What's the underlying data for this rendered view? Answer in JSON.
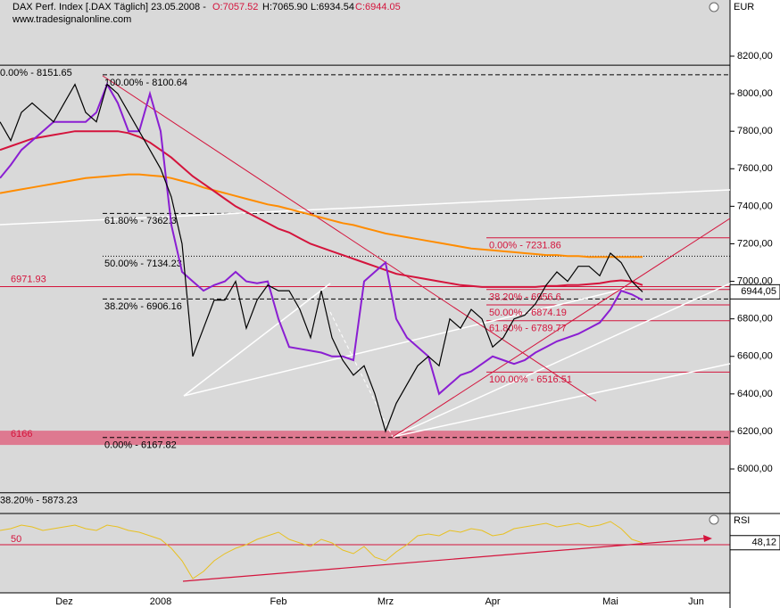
{
  "header": {
    "title": "DAX Perf. Index [.DAX  Täglich] 23.05.2008 -",
    "open": "O:7057.52",
    "high": "H:7065.90",
    "low": "L:6934.54",
    "close": "C:6944.05",
    "source": "www.tradesignalonline.com"
  },
  "chart_data": [
    {
      "type": "line",
      "unit": "EUR",
      "categories": [
        null,
        null,
        null,
        null,
        null,
        null,
        "Dez",
        null,
        null,
        null,
        null,
        null,
        null,
        null,
        null,
        "2008",
        null,
        null,
        null,
        null,
        null,
        null,
        null,
        null,
        null,
        null,
        "Feb",
        null,
        null,
        null,
        null,
        null,
        null,
        null,
        null,
        null,
        "Mrz",
        null,
        null,
        null,
        null,
        null,
        null,
        null,
        null,
        null,
        "Apr",
        null,
        null,
        null,
        null,
        null,
        null,
        null,
        null,
        null,
        null,
        "Mai",
        null,
        null,
        null,
        null,
        null,
        null,
        null,
        "Jun",
        null,
        null,
        null
      ],
      "series": [
        {
          "color": "#ff8c00",
          "values": [
            7470,
            7480,
            7490,
            7500,
            7510,
            7520,
            7530,
            7540,
            7550,
            7555,
            7560,
            7565,
            7570,
            7570,
            7565,
            7560,
            7550,
            7535,
            7520,
            7500,
            7485,
            7470,
            7455,
            7440,
            7425,
            7410,
            7400,
            7385,
            7370,
            7355,
            7340,
            7325,
            7310,
            7300,
            7285,
            7270,
            7255,
            7245,
            7235,
            7225,
            7215,
            7205,
            7195,
            7185,
            7175,
            7170,
            7165,
            7160,
            7155,
            7150,
            7145,
            7140,
            7140,
            7135,
            7135,
            7130,
            7130,
            7130,
            7130,
            7130,
            7130,
            null,
            null,
            null,
            null,
            null,
            null,
            null,
            null
          ]
        },
        {
          "color": "#d4143c",
          "values": [
            7700,
            7720,
            7740,
            7760,
            7770,
            7780,
            7790,
            7800,
            7800,
            7800,
            7800,
            7800,
            7790,
            7770,
            7740,
            7700,
            7660,
            7610,
            7560,
            7520,
            7480,
            7440,
            7400,
            7370,
            7340,
            7310,
            7280,
            7260,
            7230,
            7200,
            7180,
            7160,
            7140,
            7120,
            7100,
            7080,
            7060,
            7040,
            7030,
            7020,
            7010,
            7000,
            6990,
            6980,
            6975,
            6970,
            6970,
            6970,
            6970,
            6970,
            6970,
            6975,
            6975,
            6980,
            6980,
            6985,
            6990,
            7000,
            7005,
            7000,
            6980,
            null,
            null,
            null,
            null,
            null,
            null,
            null,
            null
          ]
        },
        {
          "color": "#8a1ed2",
          "values": [
            7550,
            7620,
            7700,
            7750,
            7800,
            7850,
            7850,
            7850,
            7850,
            7900,
            8050,
            7950,
            7800,
            7800,
            8000,
            7800,
            7300,
            7050,
            7000,
            6950,
            6980,
            7000,
            7050,
            7000,
            6990,
            7000,
            6800,
            6650,
            6640,
            6630,
            6620,
            6600,
            6600,
            6580,
            7000,
            7050,
            7100,
            6800,
            6700,
            6650,
            6600,
            6400,
            6450,
            6500,
            6520,
            6560,
            6600,
            6580,
            6560,
            6580,
            6620,
            6650,
            6680,
            6700,
            6720,
            6750,
            6780,
            6850,
            6950,
            6930,
            6900,
            null,
            null,
            null,
            null,
            null,
            null,
            null,
            null
          ]
        },
        {
          "color": "#000000",
          "values": [
            7850,
            7750,
            7900,
            7950,
            7900,
            7850,
            7950,
            8050,
            7900,
            7850,
            8050,
            8000,
            7900,
            7800,
            7700,
            7600,
            7450,
            7200,
            6600,
            6750,
            6900,
            6900,
            7000,
            6750,
            6900,
            6980,
            6950,
            6950,
            6850,
            6700,
            6950,
            6700,
            6580,
            6500,
            6550,
            6400,
            6200,
            6350,
            6450,
            6550,
            6600,
            6550,
            6800,
            6750,
            6850,
            6800,
            6650,
            6700,
            6800,
            6820,
            6880,
            6980,
            7050,
            7000,
            7080,
            7080,
            7030,
            7150,
            7100,
            7000,
            6944,
            null,
            null,
            null,
            null,
            null,
            null,
            null,
            null
          ]
        }
      ],
      "ylim": [
        5860,
        8420
      ],
      "yticks": [
        {
          "value": 6000,
          "label": "6000,00"
        },
        {
          "value": 6200,
          "label": "6200,00"
        },
        {
          "value": 6400,
          "label": "6400,00"
        },
        {
          "value": 6600,
          "label": "6600,00"
        },
        {
          "value": 6800,
          "label": "6800,00"
        },
        {
          "value": 7000,
          "label": "7000,00"
        },
        {
          "value": 7200,
          "label": "7200,00"
        },
        {
          "value": 7400,
          "label": "7400,00"
        },
        {
          "value": 7600,
          "label": "7600,00"
        },
        {
          "value": 7800,
          "label": "7800,00"
        },
        {
          "value": 8000,
          "label": "8000,00"
        },
        {
          "value": 8200,
          "label": "8200,00"
        }
      ],
      "last_value": {
        "value": 6944.05,
        "label": "6944,05"
      },
      "levels": [
        {
          "value": 8151.65,
          "label": "0.00% - 8151.65",
          "color": "#000000",
          "style": "solid"
        },
        {
          "value": 8100.64,
          "label": "100.00% - 8100.64",
          "color": "#000000",
          "style": "dashed"
        },
        {
          "value": 7362.3,
          "label": "61.80% - 7362.3",
          "color": "#000000",
          "style": "dashed"
        },
        {
          "value": 7134.23,
          "label": "50.00% - 7134.23",
          "color": "#000000",
          "style": "dotted"
        },
        {
          "value": 6971.93,
          "label": "6971.93",
          "color": "#d4143c",
          "style": "solid"
        },
        {
          "value": 6906.16,
          "label": "38.20% - 6906.16",
          "color": "#000000",
          "style": "dashed"
        },
        {
          "value": 6167.82,
          "label": "0.00% - 6167.82",
          "color": "#000000",
          "style": "dashed"
        },
        {
          "value": 5873.23,
          "label": "38.20% - 5873.23",
          "color": "#000000",
          "style": "solid"
        },
        {
          "value": 7231.86,
          "label": "0.00% - 7231.86",
          "color": "#d4143c",
          "style": "solid"
        },
        {
          "value": 6956.6,
          "label": "38.20% - 6956.6",
          "color": "#d4143c",
          "style": "solid"
        },
        {
          "value": 6874.19,
          "label": "50.00% - 6874.19",
          "color": "#d4143c",
          "style": "solid"
        },
        {
          "value": 6789.77,
          "label": "61.80% - 6789.77",
          "color": "#d4143c",
          "style": "solid"
        },
        {
          "value": 6516.51,
          "label": "100.00% - 6516.51",
          "color": "#d4143c",
          "style": "solid"
        }
      ],
      "band": {
        "value": 6166,
        "label": "6166",
        "color": "#e05070"
      }
    },
    {
      "type": "line",
      "title": "RSI",
      "series": [
        {
          "color": "#e8c020",
          "values": [
            55,
            56,
            58,
            57,
            55,
            56,
            57,
            58,
            56,
            55,
            58,
            57,
            55,
            54,
            52,
            50,
            45,
            38,
            28,
            32,
            38,
            42,
            45,
            47,
            50,
            52,
            54,
            50,
            48,
            46,
            50,
            48,
            44,
            42,
            46,
            40,
            38,
            43,
            47,
            52,
            53,
            52,
            55,
            54,
            56,
            55,
            52,
            53,
            56,
            57,
            58,
            59,
            57,
            58,
            59,
            57,
            58,
            60,
            56,
            50,
            48.12,
            null,
            null,
            null,
            null,
            null,
            null,
            null,
            null
          ]
        }
      ],
      "ylim": [
        20,
        64
      ],
      "yticks": [
        50
      ],
      "last_value": {
        "value": 48.12,
        "label": "48,12"
      }
    }
  ]
}
